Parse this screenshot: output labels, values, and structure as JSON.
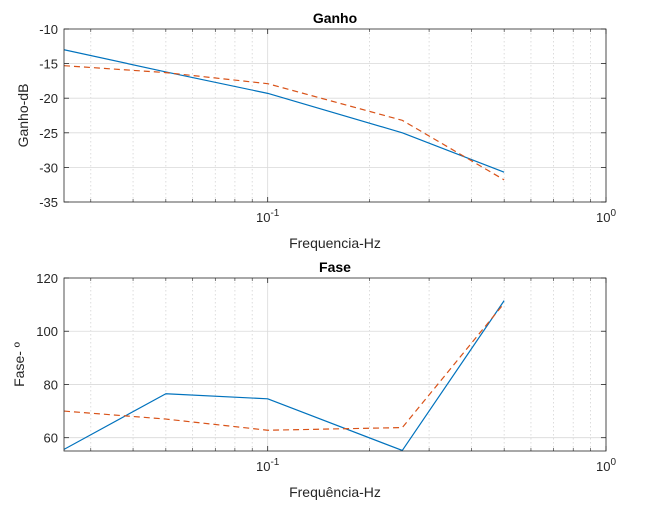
{
  "chart_data": [
    {
      "type": "line",
      "title": "Ganho",
      "xlabel": "Frequencia-Hz",
      "ylabel": "Ganho-dB",
      "xscale": "log",
      "xlim": [
        0.025,
        1
      ],
      "ylim": [
        -35,
        -10
      ],
      "xticks": [
        {
          "value": 0.1,
          "base": "10",
          "exp": "-1"
        },
        {
          "value": 1,
          "base": "10",
          "exp": "0"
        }
      ],
      "yticks": [
        {
          "value": -35,
          "label": "-35"
        },
        {
          "value": -30,
          "label": "-30"
        },
        {
          "value": -25,
          "label": "-25"
        },
        {
          "value": -20,
          "label": "-20"
        },
        {
          "value": -15,
          "label": "-15"
        },
        {
          "value": -10,
          "label": "-10"
        }
      ],
      "grid": true,
      "series": [
        {
          "color": "#0072BD",
          "style": "solid",
          "x": [
            0.025,
            0.05,
            0.1,
            0.25,
            0.5
          ],
          "y": [
            -13.0,
            -16.2,
            -19.3,
            -25.0,
            -30.7
          ]
        },
        {
          "color": "#D95319",
          "style": "dashed",
          "x": [
            0.025,
            0.05,
            0.1,
            0.25,
            0.5
          ],
          "y": [
            -15.3,
            -16.3,
            -17.9,
            -23.2,
            -31.8
          ]
        }
      ]
    },
    {
      "type": "line",
      "title": "Fase",
      "xlabel": "Frequência-Hz",
      "ylabel": "Fase- º",
      "xscale": "log",
      "xlim": [
        0.025,
        1
      ],
      "ylim": [
        55,
        120
      ],
      "xticks": [
        {
          "value": 0.1,
          "base": "10",
          "exp": "-1"
        },
        {
          "value": 1,
          "base": "10",
          "exp": "0"
        }
      ],
      "yticks": [
        {
          "value": 60,
          "label": "60"
        },
        {
          "value": 80,
          "label": "80"
        },
        {
          "value": 100,
          "label": "100"
        },
        {
          "value": 120,
          "label": "120"
        }
      ],
      "grid": true,
      "series": [
        {
          "color": "#0072BD",
          "style": "solid",
          "x": [
            0.025,
            0.05,
            0.1,
            0.25,
            0.5
          ],
          "y": [
            55.6,
            76.5,
            74.6,
            55.2,
            111.5
          ]
        },
        {
          "color": "#D95319",
          "style": "dashed",
          "x": [
            0.025,
            0.05,
            0.1,
            0.25,
            0.5
          ],
          "y": [
            70.0,
            67.0,
            62.8,
            63.8,
            110.5
          ]
        }
      ]
    }
  ]
}
